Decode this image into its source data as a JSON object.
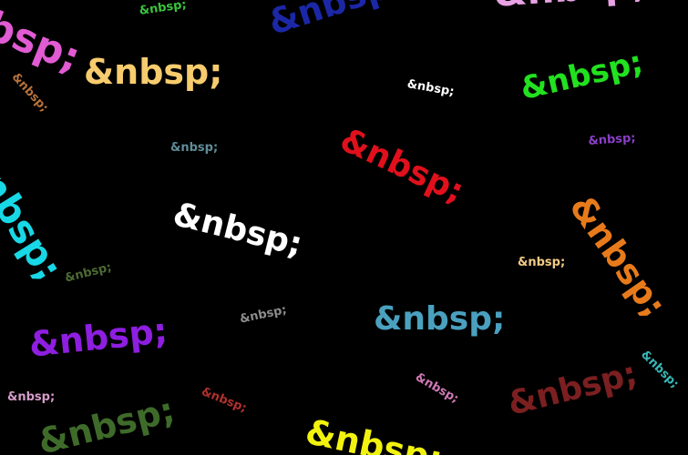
{
  "words": [
    {
      "text": "&nbsp;",
      "color": "#e15bd3"
    },
    {
      "text": "&nbsp;",
      "color": "#39c43b"
    },
    {
      "text": "&nbsp;",
      "color": "#1c27a6"
    },
    {
      "text": "&nbsp;",
      "color": "#e8a2e4"
    },
    {
      "text": "&nbsp;",
      "color": "#f7cc6e"
    },
    {
      "text": "&nbsp;",
      "color": "#b8723b"
    },
    {
      "text": "&nbsp;",
      "color": "#ffffff"
    },
    {
      "text": "&nbsp;",
      "color": "#22e11f"
    },
    {
      "text": "&nbsp;",
      "color": "#5f8c98"
    },
    {
      "text": "&nbsp;",
      "color": "#e0101c"
    },
    {
      "text": "&nbsp;",
      "color": "#8a3fc8"
    },
    {
      "text": "&nbsp;",
      "color": "#18d8e6"
    },
    {
      "text": "&nbsp;",
      "color": "#ffffff"
    },
    {
      "text": "&nbsp;",
      "color": "#e77b1c"
    },
    {
      "text": "&nbsp;",
      "color": "#f3cb85"
    },
    {
      "text": "&nbsp;",
      "color": "#4d6a34"
    },
    {
      "text": "&nbsp;",
      "color": "#8c8c8c"
    },
    {
      "text": "&nbsp;",
      "color": "#4aa0bf"
    },
    {
      "text": "&nbsp;",
      "color": "#8e1ee0"
    },
    {
      "text": "&nbsp;",
      "color": "#3ab8b7"
    },
    {
      "text": "&nbsp;",
      "color": "#d59cc8"
    },
    {
      "text": "&nbsp;",
      "color": "#b0302d"
    },
    {
      "text": "&nbsp;",
      "color": "#d079b6"
    },
    {
      "text": "&nbsp;",
      "color": "#7b1f20"
    },
    {
      "text": "&nbsp;",
      "color": "#3f6b2a"
    },
    {
      "text": "&nbsp;",
      "color": "#f2f20f"
    }
  ]
}
